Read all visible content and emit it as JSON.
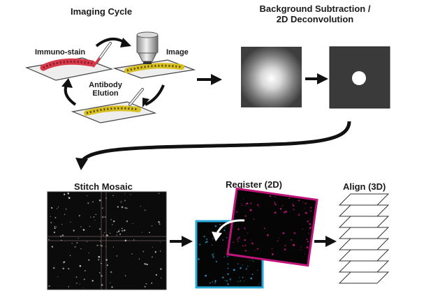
{
  "imaging_cycle": {
    "title": "Imaging Cycle",
    "immunostain_label": "Immuno-stain",
    "image_label": "Image",
    "elution_label_line1": "Antibody",
    "elution_label_line2": "Elution"
  },
  "deconvolution": {
    "title_line1": "Background Subtraction /",
    "title_line2": "2D Deconvolution"
  },
  "stitch": {
    "title": "Stitch Mosaic"
  },
  "register": {
    "title": "Register (2D)"
  },
  "align": {
    "title": "Align (3D)"
  },
  "colors": {
    "stain": "#d63a4a",
    "tissue_yellow": "#d8c020",
    "register_blue": "#2aa8d8",
    "register_magenta": "#c0157a",
    "arrow": "#111111"
  },
  "icons": [
    "pipette-icon",
    "microscope-objective-icon",
    "pipette-icon",
    "cycle-arrow-icon"
  ]
}
